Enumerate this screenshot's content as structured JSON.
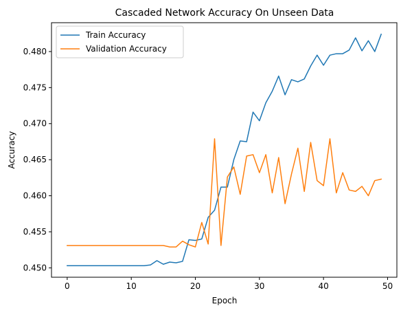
{
  "chart_data": {
    "type": "line",
    "title": "Cascaded Network Accuracy On Unseen Data",
    "xlabel": "Epoch",
    "ylabel": "Accuracy",
    "xlim": [
      -2.45,
      51.45
    ],
    "ylim": [
      0.4487,
      0.484
    ],
    "xticks": [
      0,
      10,
      20,
      30,
      40,
      50
    ],
    "yticks": [
      0.45,
      0.455,
      0.46,
      0.465,
      0.47,
      0.475,
      0.48
    ],
    "ytick_labels": [
      "0.450",
      "0.455",
      "0.460",
      "0.465",
      "0.470",
      "0.475",
      "0.480"
    ],
    "grid": false,
    "legend_position": "top-left",
    "x": [
      0,
      1,
      2,
      3,
      4,
      5,
      6,
      7,
      8,
      9,
      10,
      11,
      12,
      13,
      14,
      15,
      16,
      17,
      18,
      19,
      20,
      21,
      22,
      23,
      24,
      25,
      26,
      27,
      28,
      29,
      30,
      31,
      32,
      33,
      34,
      35,
      36,
      37,
      38,
      39,
      40,
      41,
      42,
      43,
      44,
      45,
      46,
      47,
      48,
      49
    ],
    "series": [
      {
        "name": "Train Accuracy",
        "color": "#1f77b4",
        "values": [
          0.4503,
          0.4503,
          0.4503,
          0.4503,
          0.4503,
          0.4503,
          0.4503,
          0.4503,
          0.4503,
          0.4503,
          0.4503,
          0.4503,
          0.4503,
          0.4504,
          0.451,
          0.4505,
          0.4508,
          0.4507,
          0.4509,
          0.4539,
          0.4538,
          0.454,
          0.457,
          0.458,
          0.4612,
          0.4612,
          0.465,
          0.4676,
          0.4675,
          0.4716,
          0.4704,
          0.4729,
          0.4745,
          0.4766,
          0.474,
          0.4761,
          0.4758,
          0.4762,
          0.478,
          0.4795,
          0.4781,
          0.4795,
          0.4797,
          0.4797,
          0.4802,
          0.4819,
          0.4801,
          0.4815,
          0.48,
          0.4824
        ]
      },
      {
        "name": "Validation Accuracy",
        "color": "#ff7f0e",
        "values": [
          0.4531,
          0.4531,
          0.4531,
          0.4531,
          0.4531,
          0.4531,
          0.4531,
          0.4531,
          0.4531,
          0.4531,
          0.4531,
          0.4531,
          0.4531,
          0.4531,
          0.4531,
          0.4531,
          0.4529,
          0.4529,
          0.4537,
          0.4532,
          0.4529,
          0.4563,
          0.4533,
          0.4679,
          0.4531,
          0.4626,
          0.464,
          0.4602,
          0.4655,
          0.4657,
          0.4632,
          0.4657,
          0.4604,
          0.4653,
          0.4589,
          0.463,
          0.4666,
          0.4606,
          0.4674,
          0.4621,
          0.4614,
          0.4679,
          0.4604,
          0.4632,
          0.4608,
          0.4606,
          0.4613,
          0.46,
          0.4621,
          0.4623
        ]
      }
    ]
  }
}
